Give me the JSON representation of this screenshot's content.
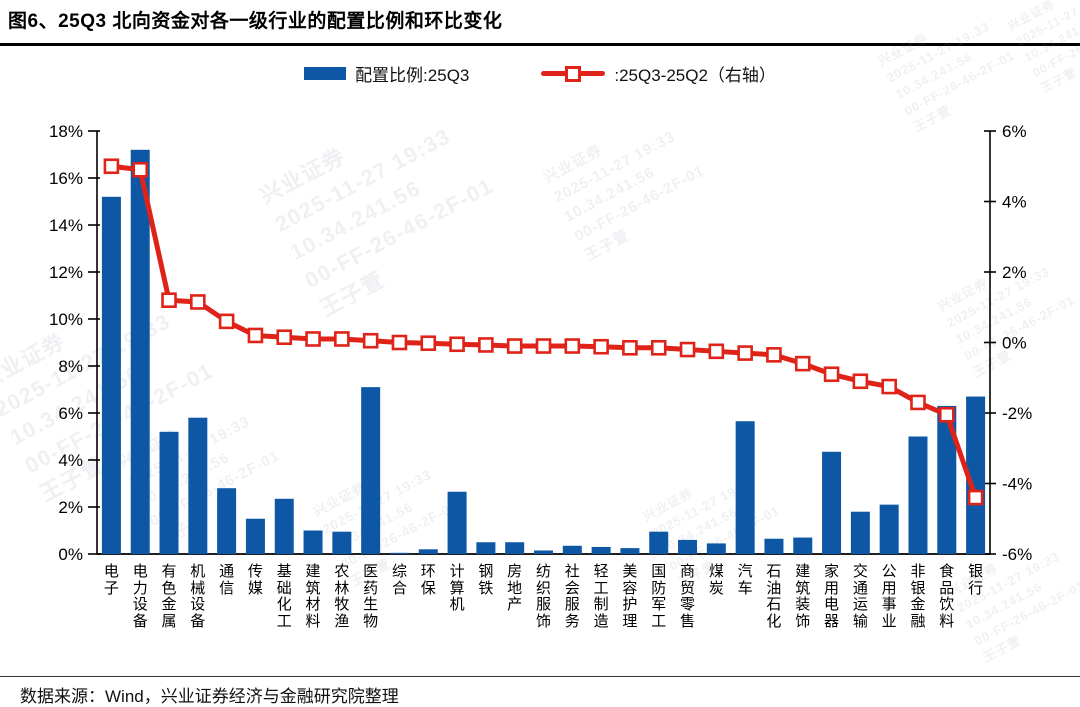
{
  "title": "图6、25Q3 北向资金对各一级行业的配置比例和环比变化",
  "footer": {
    "source_label": "数据来源：Wind，兴业证券经济与金融研究院整理"
  },
  "watermark": {
    "lines": [
      "兴业证券",
      "2025-11-27 19:33",
      "10.34.241.56",
      "00-FF-26-46-2F-01",
      "王子萱"
    ]
  },
  "chart_data": {
    "type": "bar",
    "combo": "bar+line",
    "title": "图6、25Q3 北向资金对各一级行业的配置比例和环比变化",
    "grid": false,
    "legend_position": "top",
    "categories": [
      "电子",
      "电力设备",
      "有色金属",
      "机械设备",
      "通信",
      "传媒",
      "基础化工",
      "建筑材料",
      "农林牧渔",
      "医药生物",
      "综合",
      "环保",
      "计算机",
      "钢铁",
      "房地产",
      "纺织服饰",
      "社会服务",
      "轻工制造",
      "美容护理",
      "国防军工",
      "商贸零售",
      "煤炭",
      "汽车",
      "石油石化",
      "建筑装饰",
      "家用电器",
      "交通运输",
      "公用事业",
      "非银金融",
      "食品饮料",
      "银行"
    ],
    "series": [
      {
        "name": "配置比例:25Q3",
        "type": "bar",
        "axis": "left",
        "color": "#0d57a5",
        "values": [
          15.2,
          17.2,
          5.2,
          5.8,
          2.8,
          1.5,
          2.35,
          1.0,
          0.95,
          7.1,
          0.05,
          0.2,
          2.65,
          0.5,
          0.5,
          0.15,
          0.35,
          0.3,
          0.25,
          0.95,
          0.6,
          0.45,
          5.65,
          0.65,
          0.7,
          4.35,
          1.8,
          2.1,
          5.0,
          6.3,
          6.7
        ]
      },
      {
        "name": ":25Q3-25Q2（右轴）",
        "type": "line",
        "axis": "right",
        "color": "#e02318",
        "marker": "open-square",
        "values": [
          5.0,
          4.9,
          1.2,
          1.15,
          0.6,
          0.2,
          0.15,
          0.1,
          0.1,
          0.05,
          0.0,
          -0.02,
          -0.05,
          -0.07,
          -0.1,
          -0.1,
          -0.1,
          -0.12,
          -0.15,
          -0.15,
          -0.2,
          -0.25,
          -0.3,
          -0.35,
          -0.6,
          -0.9,
          -1.1,
          -1.25,
          -1.7,
          -2.05,
          -4.4
        ]
      }
    ],
    "left_axis": {
      "min": 0,
      "max": 18,
      "step": 2,
      "suffix": "%",
      "labels": [
        "18%",
        "16%",
        "14%",
        "12%",
        "10%",
        "8%",
        "6%",
        "4%",
        "2%",
        "0%"
      ]
    },
    "right_axis": {
      "min": -6,
      "max": 6,
      "step": 2,
      "suffix": "%",
      "labels": [
        "6%",
        "4%",
        "2%",
        "0%",
        "-2%",
        "-4%",
        "-6%"
      ]
    }
  }
}
